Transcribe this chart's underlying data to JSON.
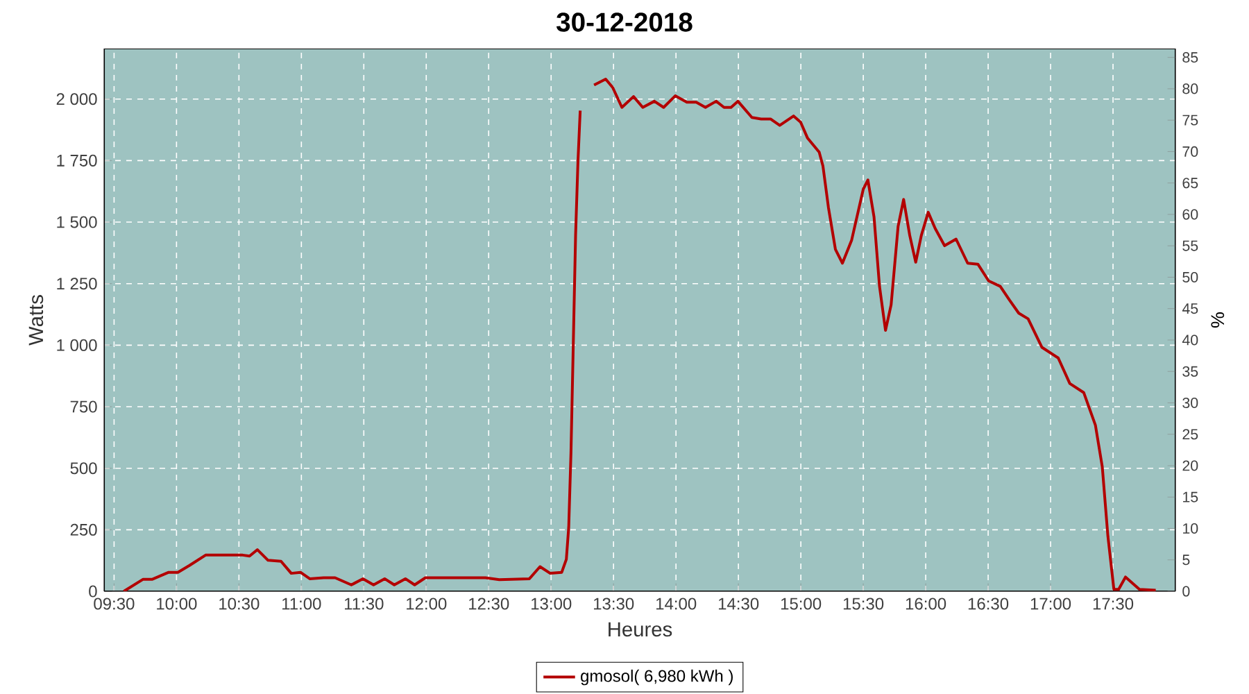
{
  "chart_data": {
    "type": "line",
    "title": "30-12-2018",
    "xlabel": "Heures",
    "ylabel": "Watts",
    "y2label": "%",
    "xlim": [
      9.42,
      18.0
    ],
    "ylim": [
      0,
      2205
    ],
    "y2lim": [
      0,
      86.4
    ],
    "xticks": [
      {
        "value": 9.5,
        "label": "09:30"
      },
      {
        "value": 10,
        "label": "10:00"
      },
      {
        "value": 10.5,
        "label": "10:30"
      },
      {
        "value": 11,
        "label": "11:00"
      },
      {
        "value": 11.5,
        "label": "11:30"
      },
      {
        "value": 12,
        "label": "12:00"
      },
      {
        "value": 12.5,
        "label": "12:30"
      },
      {
        "value": 13,
        "label": "13:00"
      },
      {
        "value": 13.5,
        "label": "13:30"
      },
      {
        "value": 14,
        "label": "14:00"
      },
      {
        "value": 14.5,
        "label": "14:30"
      },
      {
        "value": 15,
        "label": "15:00"
      },
      {
        "value": 15.5,
        "label": "15:30"
      },
      {
        "value": 16,
        "label": "16:00"
      },
      {
        "value": 16.5,
        "label": "16:30"
      },
      {
        "value": 17,
        "label": "17:00"
      },
      {
        "value": 17.5,
        "label": "17:30"
      }
    ],
    "yticks": [
      0,
      250,
      500,
      750,
      {
        "value": 1000,
        "label": "1 000"
      },
      {
        "value": 1250,
        "label": "1 250"
      },
      {
        "value": 1500,
        "label": "1 500"
      },
      {
        "value": 1750,
        "label": "1 750"
      },
      {
        "value": 2000,
        "label": "2 000"
      }
    ],
    "y2ticks": [
      0,
      5,
      10,
      15,
      20,
      25,
      30,
      35,
      40,
      45,
      50,
      55,
      60,
      65,
      70,
      75,
      80,
      85
    ],
    "grid": true,
    "legend": "bottom",
    "line_style": "solid",
    "marker": "none",
    "series": [
      {
        "name": "gmosol( 6,980 kWh )",
        "color": "#b30000",
        "x": [
          9.578,
          9.733,
          9.807,
          9.937,
          10.011,
          10.104,
          10.233,
          10.53,
          10.585,
          10.648,
          10.733,
          10.837,
          10.919,
          10.993,
          11.067,
          11.178,
          11.27,
          11.4,
          11.493,
          11.578,
          11.667,
          11.744,
          11.833,
          11.907,
          11.993,
          12.474,
          12.585,
          12.826,
          12.911,
          12.993,
          13.085,
          13.122,
          13.141,
          13.159,
          13.178,
          13.196,
          13.215,
          13.233,
          13.262,
          13.3,
          13.344,
          13.437,
          13.493,
          13.567,
          13.66,
          13.734,
          13.827,
          13.901,
          13.994,
          14.087,
          14.162,
          14.236,
          14.322,
          14.385,
          14.441,
          14.496,
          14.608,
          14.682,
          14.757,
          14.831,
          14.942,
          14.998,
          15.054,
          15.147,
          15.177,
          15.221,
          15.277,
          15.333,
          15.407,
          15.5,
          15.537,
          15.586,
          15.63,
          15.678,
          15.723,
          15.779,
          15.823,
          15.872,
          15.92,
          15.965,
          16.02,
          16.076,
          16.151,
          16.243,
          16.336,
          16.418,
          16.504,
          16.597,
          16.671,
          16.745,
          16.82,
          16.931,
          17.061,
          17.154,
          17.266,
          17.359,
          17.414,
          17.459,
          17.507,
          17.545,
          17.6,
          17.712,
          17.842
        ],
        "values": [
          0,
          49,
          49,
          77,
          77,
          105,
          147,
          147,
          143,
          169,
          126,
          122,
          73,
          77,
          51,
          55,
          55,
          26,
          51,
          26,
          51,
          26,
          51,
          26,
          55,
          55,
          47,
          51,
          100,
          73,
          77,
          130,
          261,
          562,
          1013,
          1446,
          1746,
          1953,
          null,
          null,
          2057,
          2081,
          2047,
          1966,
          2010,
          1966,
          1991,
          1966,
          2013,
          1987,
          1987,
          1966,
          1991,
          1966,
          1966,
          1991,
          1925,
          1919,
          1919,
          1893,
          1931,
          1906,
          1841,
          1784,
          1728,
          1559,
          1389,
          1333,
          1427,
          1634,
          1671,
          1521,
          1239,
          1060,
          1164,
          1483,
          1592,
          1446,
          1337,
          1446,
          1540,
          1474,
          1404,
          1431,
          1333,
          1329,
          1261,
          1239,
          1183,
          1130,
          1107,
          991,
          948,
          844,
          807,
          675,
          506,
          224,
          8,
          8,
          58,
          8,
          4
        ]
      }
    ]
  }
}
